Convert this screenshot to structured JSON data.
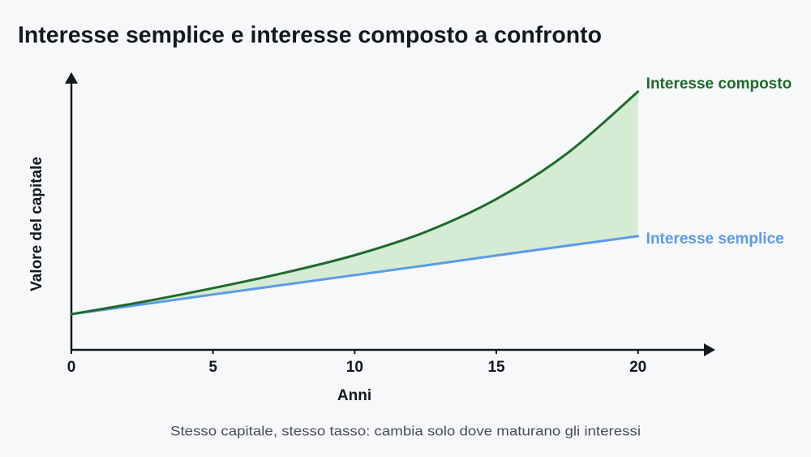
{
  "chart_data": {
    "type": "line",
    "title": "Interesse semplice e interesse composto a confronto",
    "caption": "Stesso capitale, stesso tasso: cambia solo dove maturano gli interessi",
    "xlabel": "Anni",
    "ylabel": "Valore del capitale",
    "x": [
      0,
      2.5,
      5,
      7.5,
      10,
      12.5,
      15,
      17.5,
      20
    ],
    "series": [
      {
        "name": "Interesse composto",
        "color": "#1e6b2a",
        "values": [
          12.9,
          17.3,
          22.3,
          27.8,
          34.2,
          42.6,
          54.5,
          71.0,
          93.3
        ]
      },
      {
        "name": "Interesse semplice",
        "color": "#5b9be8",
        "values": [
          12.9,
          16.4,
          20.0,
          23.5,
          27.0,
          30.5,
          34.1,
          37.6,
          41.1
        ]
      }
    ],
    "fill_between_color": "#d5ebd3",
    "xlim": [
      0,
      22.7
    ],
    "xticks": [
      0,
      5,
      10,
      15,
      20
    ],
    "ylim": [
      0,
      100
    ]
  }
}
